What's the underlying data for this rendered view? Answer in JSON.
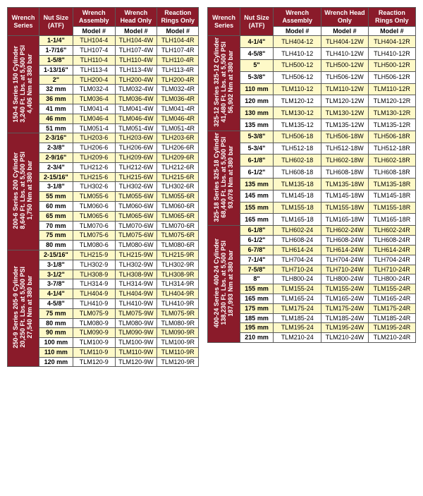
{
  "headers": {
    "wrench_series": "Wrench Series",
    "nut_size": "Nut Size (ATF)",
    "wrench_assembly": "Wrench Assembly",
    "wrench_head": "Wrench Head Only",
    "reaction_rings": "Reaction Rings Only",
    "model": "Model #"
  },
  "colors": {
    "header_bg": "#8a1b2a",
    "header_fg": "#ffffff",
    "highlight_bg": "#fef9c8",
    "row_bg": "#ffffff",
    "border": "#5a5a5a"
  },
  "left_groups": [
    {
      "series_label": "150-4 Series 150 Cylinder\n3,240 Ft. Lbs. at 5,500 PSI\n4,406 Nm at 380 bar",
      "rows": [
        {
          "hl": true,
          "nut": "1-1/4\"",
          "a": "TLH104-4",
          "h": "TLH104-4W",
          "r": "TLH104-4R"
        },
        {
          "hl": false,
          "nut": "1-7/16\"",
          "a": "TLH107-4",
          "h": "TLH107-4W",
          "r": "TLH107-4R"
        },
        {
          "hl": true,
          "nut": "1-5/8\"",
          "a": "TLH110-4",
          "h": "TLH110-4W",
          "r": "TLH110-4R"
        },
        {
          "hl": false,
          "nut": "1-13/16\"",
          "a": "TLH113-4",
          "h": "TLH113-4W",
          "r": "TLH113-4R"
        },
        {
          "hl": true,
          "nut": "2\"",
          "a": "TLH200-4",
          "h": "TLH200-4W",
          "r": "TLH200-4R"
        },
        {
          "hl": false,
          "nut": "32 mm",
          "a": "TLM032-4",
          "h": "TLM032-4W",
          "r": "TLM032-4R"
        },
        {
          "hl": true,
          "nut": "36 mm",
          "a": "TLM036-4",
          "h": "TLM036-4W",
          "r": "TLM036-4R"
        },
        {
          "hl": false,
          "nut": "41 mm",
          "a": "TLM041-4",
          "h": "TLM041-4W",
          "r": "TLM041-4R"
        },
        {
          "hl": true,
          "nut": "46 mm",
          "a": "TLM046-4",
          "h": "TLM046-4W",
          "r": "TLM046-4R"
        },
        {
          "hl": false,
          "nut": "51 mm",
          "a": "TLM051-4",
          "h": "TLM051-4W",
          "r": "TLM051-4R"
        }
      ]
    },
    {
      "series_label": "200-6 Series 200 Cylinder\n8,640 Ft. Lbs. at 5,500 PSI\n1,750 Nm at 380 bar",
      "rows": [
        {
          "hl": true,
          "nut": "2-3/16\"",
          "a": "TLH203-6",
          "h": "TLH203-6W",
          "r": "TLH203-6R"
        },
        {
          "hl": false,
          "nut": "2-3/8\"",
          "a": "TLH206-6",
          "h": "TLH206-6W",
          "r": "TLH206-6R"
        },
        {
          "hl": true,
          "nut": "2-9/16\"",
          "a": "TLH209-6",
          "h": "TLH209-6W",
          "r": "TLH209-6R"
        },
        {
          "hl": false,
          "nut": "2-3/4\"",
          "a": "TLH212-6",
          "h": "TLH212-6W",
          "r": "TLH212-6R"
        },
        {
          "hl": true,
          "nut": "2-15/16\"",
          "a": "TLH215-6",
          "h": "TLH215-6W",
          "r": "TLH215-6R"
        },
        {
          "hl": false,
          "nut": "3-1/8\"",
          "a": "TLH302-6",
          "h": "TLH302-6W",
          "r": "TLH302-6R"
        },
        {
          "hl": true,
          "nut": "55 mm",
          "a": "TLM055-6",
          "h": "TLM055-6W",
          "r": "TLM055-6R"
        },
        {
          "hl": false,
          "nut": "60 mm",
          "a": "TLM060-6",
          "h": "TLM060-6W",
          "r": "TLM060-6R"
        },
        {
          "hl": true,
          "nut": "65 mm",
          "a": "TLM065-6",
          "h": "TLM065-6W",
          "r": "TLM065-6R"
        },
        {
          "hl": false,
          "nut": "70 mm",
          "a": "TLM070-6",
          "h": "TLM070-6W",
          "r": "TLM070-6R"
        },
        {
          "hl": true,
          "nut": "75 mm",
          "a": "TLM075-6",
          "h": "TLM075-6W",
          "r": "TLM075-6R"
        },
        {
          "hl": false,
          "nut": "80 mm",
          "a": "TLM080-6",
          "h": "TLM080-6W",
          "r": "TLM080-6R"
        }
      ]
    },
    {
      "series_label": "250-9 Series 205-9 Cylinder\n20,250 Ft. Lbs. at 5,500 PSI\n27,540 Nm at 380 bar",
      "rows": [
        {
          "hl": true,
          "nut": "2-15/16\"",
          "a": "TLH215-9",
          "h": "TLH215-9W",
          "r": "TLH215-9R"
        },
        {
          "hl": false,
          "nut": "3-1/8\"",
          "a": "TLH302-9",
          "h": "TLH302-9W",
          "r": "TLH302-9R"
        },
        {
          "hl": true,
          "nut": "3-1/2\"",
          "a": "TLH308-9",
          "h": "TLH308-9W",
          "r": "TLH308-9R"
        },
        {
          "hl": false,
          "nut": "3-7/8\"",
          "a": "TLH314-9",
          "h": "TLH314-9W",
          "r": "TLH314-9R"
        },
        {
          "hl": true,
          "nut": "4-1/4\"",
          "a": "TLH404-9",
          "h": "TLH404-9W",
          "r": "TLH404-9R"
        },
        {
          "hl": false,
          "nut": "4-5/8\"",
          "a": "TLH410-9",
          "h": "TLH410-9W",
          "r": "TLH410-9R"
        },
        {
          "hl": true,
          "nut": "75 mm",
          "a": "TLM075-9",
          "h": "TLM075-9W",
          "r": "TLM075-9R"
        },
        {
          "hl": false,
          "nut": "80 mm",
          "a": "TLM080-9",
          "h": "TLM080-9W",
          "r": "TLM080-9R"
        },
        {
          "hl": true,
          "nut": "90 mm",
          "a": "TLM090-9",
          "h": "TLM090-9W",
          "r": "TLM090-9R"
        },
        {
          "hl": false,
          "nut": "100 mm",
          "a": "TLM100-9",
          "h": "TLM100-9W",
          "r": "TLM100-9R"
        },
        {
          "hl": true,
          "nut": "110 mm",
          "a": "TLM110-9",
          "h": "TLM110-9W",
          "r": "TLM110-9R"
        },
        {
          "hl": false,
          "nut": "120 mm",
          "a": "TLM120-9",
          "h": "TLM120-9W",
          "r": "TLM120-9R"
        }
      ]
    }
  ],
  "right_groups": [
    {
      "series_label": "325-12 Series 325-12 Cylinder\n41,480 Ft. Lbs. at 5,500 PSI\n56,902 Nm at 380 bar",
      "rows": [
        {
          "hl": true,
          "nut": "4-1/4\"",
          "a": "TLH404-12",
          "h": "TLH404-12W",
          "r": "TLH404-12R"
        },
        {
          "hl": false,
          "nut": "4-5/8\"",
          "a": "TLH410-12",
          "h": "TLH410-12W",
          "r": "TLH410-12R"
        },
        {
          "hl": true,
          "nut": "5\"",
          "a": "TLH500-12",
          "h": "TLH500-12W",
          "r": "TLH500-12R"
        },
        {
          "hl": false,
          "nut": "5-3/8\"",
          "a": "TLH506-12",
          "h": "TLH506-12W",
          "r": "TLH506-12R"
        },
        {
          "hl": true,
          "nut": "110 mm",
          "a": "TLM110-12",
          "h": "TLM110-12W",
          "r": "TLM110-12R"
        },
        {
          "hl": false,
          "nut": "120 mm",
          "a": "TLM120-12",
          "h": "TLM120-12W",
          "r": "TLM120-12R"
        },
        {
          "hl": true,
          "nut": "130 mm",
          "a": "TLM130-12",
          "h": "TLM130-12W",
          "r": "TLM130-12R"
        },
        {
          "hl": false,
          "nut": "135 mm",
          "a": "TLM135-12",
          "h": "TLM135-12W",
          "r": "TLM135-12R"
        }
      ]
    },
    {
      "series_label": "325-18 Series 325-18 Cylinder\n68,440 Ft. Lbs. at 5,500 PSI\n93,078 Nm at 380 bar",
      "rows": [
        {
          "hl": true,
          "nut": "5-3/8\"",
          "a": "TLH506-18",
          "h": "TLH506-18W",
          "r": "TLH506-18R"
        },
        {
          "hl": false,
          "nut": "5-3/4\"",
          "a": "TLH512-18",
          "h": "TLH512-18W",
          "r": "TLH512-18R"
        },
        {
          "hl": true,
          "nut": "6-1/8\"",
          "a": "TLH602-18",
          "h": "TLH602-18W",
          "r": "TLH602-18R"
        },
        {
          "hl": false,
          "nut": "6-1/2\"",
          "a": "TLH608-18",
          "h": "TLH608-18W",
          "r": "TLH608-18R"
        },
        {
          "hl": true,
          "nut": "135 mm",
          "a": "TLM135-18",
          "h": "TLM135-18W",
          "r": "TLM135-18R"
        },
        {
          "hl": false,
          "nut": "145 mm",
          "a": "TLM145-18",
          "h": "TLM145-18W",
          "r": "TLM145-18R"
        },
        {
          "hl": true,
          "nut": "155 mm",
          "a": "TLM155-18",
          "h": "TLM155-18W",
          "r": "TLM155-18R"
        },
        {
          "hl": false,
          "nut": "165 mm",
          "a": "TLM165-18",
          "h": "TLM165-18W",
          "r": "TLM165-18R"
        }
      ]
    },
    {
      "series_label": "400-24 Series 400-24 Cylinder\n138,230 Ft. Lbs. at 5,500 PSI\n187,993 Nm at 380 bar",
      "rows": [
        {
          "hl": true,
          "nut": "6-1/8\"",
          "a": "TLH602-24",
          "h": "TLH602-24W",
          "r": "TLH602-24R"
        },
        {
          "hl": false,
          "nut": "6-1/2\"",
          "a": "TLH608-24",
          "h": "TLH608-24W",
          "r": "TLH608-24R"
        },
        {
          "hl": true,
          "nut": "6-7/8\"",
          "a": "TLH614-24",
          "h": "TLH614-24W",
          "r": "TLH614-24R"
        },
        {
          "hl": false,
          "nut": "7-1/4\"",
          "a": "TLH704-24",
          "h": "TLH704-24W",
          "r": "TLH704-24R"
        },
        {
          "hl": true,
          "nut": "7-5/8\"",
          "a": "TLH710-24",
          "h": "TLH710-24W",
          "r": "TLH710-24R"
        },
        {
          "hl": false,
          "nut": "8\"",
          "a": "TLH800-24",
          "h": "TLH800-24W",
          "r": "TLH800-24R"
        },
        {
          "hl": true,
          "nut": "155 mm",
          "a": "TLM155-24",
          "h": "TLM155-24W",
          "r": "TLM155-24R"
        },
        {
          "hl": false,
          "nut": "165 mm",
          "a": "TLM165-24",
          "h": "TLM165-24W",
          "r": "TLM165-24R"
        },
        {
          "hl": true,
          "nut": "175 mm",
          "a": "TLM175-24",
          "h": "TLM175-24W",
          "r": "TLM175-24R"
        },
        {
          "hl": false,
          "nut": "185 mm",
          "a": "TLM185-24",
          "h": "TLM185-24W",
          "r": "TLM185-24R"
        },
        {
          "hl": true,
          "nut": "195 mm",
          "a": "TLM195-24",
          "h": "TLM195-24W",
          "r": "TLM195-24R"
        },
        {
          "hl": false,
          "nut": "210 mm",
          "a": "TLM210-24",
          "h": "TLM210-24W",
          "r": "TLM210-24R"
        }
      ]
    }
  ]
}
